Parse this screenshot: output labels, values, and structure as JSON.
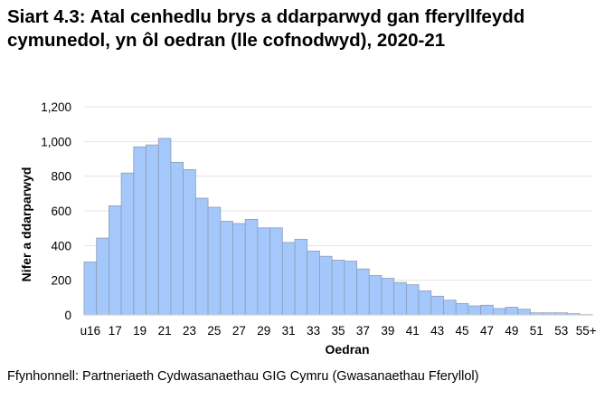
{
  "chart_data": {
    "type": "bar",
    "title": "Siart 4.3: Atal cenhedlu brys a ddarparwyd gan fferyllfeydd cymunedol, yn ôl oedran (lle cofnodwyd), 2020-21",
    "xlabel": "Oedran",
    "ylabel": "Nifer a ddarparwyd",
    "ylim": [
      0,
      1200
    ],
    "yticks": [
      "0",
      "200",
      "400",
      "600",
      "800",
      "1,000",
      "1,200"
    ],
    "grid": true,
    "bar_color": "#a4c8fb",
    "bar_edge_color": "#8c9db5",
    "categories": [
      "u16",
      "16",
      "17",
      "18",
      "19",
      "20",
      "21",
      "22",
      "23",
      "24",
      "25",
      "26",
      "27",
      "28",
      "29",
      "30",
      "31",
      "32",
      "33",
      "34",
      "35",
      "36",
      "37",
      "38",
      "39",
      "40",
      "41",
      "42",
      "43",
      "44",
      "45",
      "46",
      "47",
      "48",
      "49",
      "50",
      "51",
      "52",
      "53",
      "54",
      "55+"
    ],
    "values": [
      305,
      443,
      629,
      818,
      969,
      980,
      1018,
      880,
      838,
      673,
      621,
      540,
      527,
      551,
      502,
      502,
      418,
      436,
      368,
      338,
      316,
      310,
      265,
      227,
      211,
      187,
      174,
      139,
      108,
      85,
      66,
      52,
      56,
      37,
      44,
      33,
      12,
      12,
      12,
      7,
      2
    ]
  },
  "source": "Ffynhonnell: Partneriaeth Cydwasanaethau GIG Cymru (Gwasanaethau Fferyllol)"
}
